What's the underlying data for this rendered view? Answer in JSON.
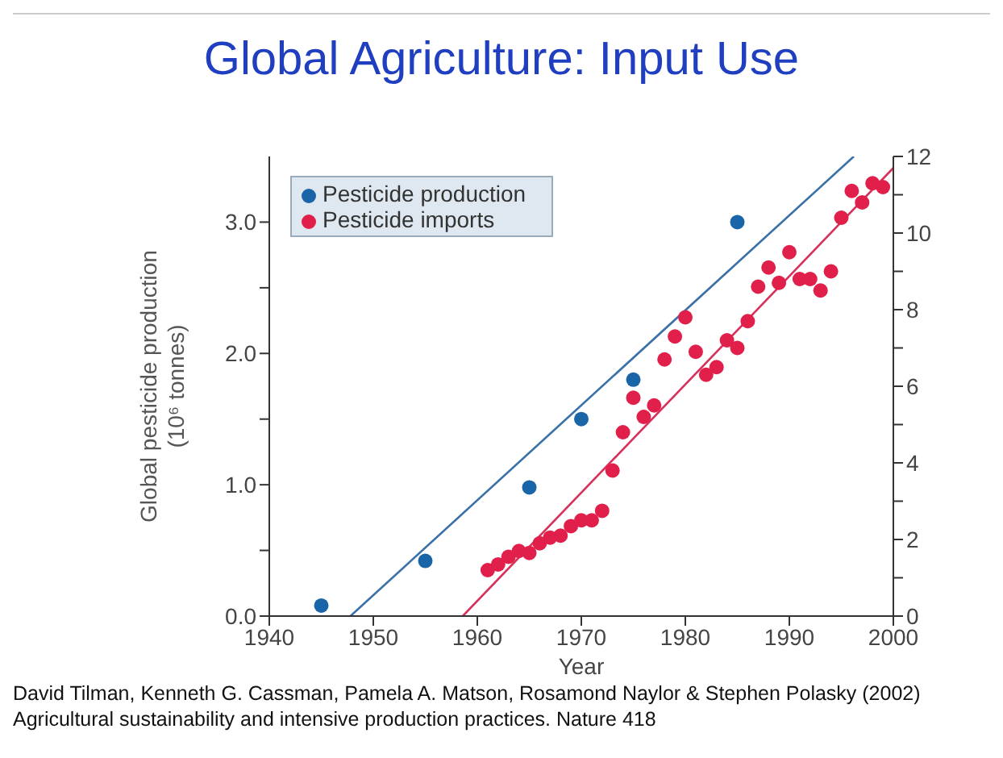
{
  "chart_data": {
    "type": "scatter",
    "title": "Global Agriculture: Input Use",
    "xlabel": "Year",
    "ylabel": "Global pesticide production\n(10⁶ tonnes)",
    "xlim": [
      1940,
      2000
    ],
    "xticks": [
      1940,
      1950,
      1960,
      1970,
      1980,
      1990,
      2000
    ],
    "ylim": [
      0,
      3.5
    ],
    "yticks": [
      {
        "value": 0,
        "label": "0.0"
      },
      {
        "value": 0.5,
        "label": null
      },
      {
        "value": 1,
        "label": "1.0"
      },
      {
        "value": 1.5,
        "label": null
      },
      {
        "value": 2,
        "label": "2.0"
      },
      {
        "value": 2.5,
        "label": null
      },
      {
        "value": 3,
        "label": "3.0"
      }
    ],
    "y2lim": [
      0,
      12
    ],
    "y2ticks": [
      0,
      {
        "value": 1,
        "label": null
      },
      2,
      {
        "value": 3,
        "label": null
      },
      4,
      {
        "value": 5,
        "label": null
      },
      6,
      {
        "value": 7,
        "label": null
      },
      8,
      {
        "value": 9,
        "label": null
      },
      10,
      {
        "value": 11,
        "label": null
      },
      12
    ],
    "legend": "top left",
    "marker": "circle",
    "series": [
      {
        "name": "Pesticide production",
        "color": "#1a64a8",
        "x": [
          1945,
          1955,
          1965,
          1970,
          1975,
          1985
        ],
        "values": [
          0.08,
          0.42,
          0.98,
          1.5,
          1.8,
          3.0
        ]
      },
      {
        "name": "Pesticide imports",
        "color": "#e0204a",
        "axis": "y2",
        "x": [
          1961,
          1962,
          1963,
          1964,
          1965,
          1966,
          1967,
          1968,
          1969,
          1970,
          1971,
          1972,
          1973,
          1974,
          1975,
          1976,
          1977,
          1978,
          1979,
          1980,
          1981,
          1982,
          1983,
          1984,
          1985,
          1986,
          1987,
          1988,
          1989,
          1990,
          1991,
          1992,
          1993,
          1994,
          1995,
          1996,
          1997,
          1998,
          1999
        ],
        "values": [
          1.2,
          1.35,
          1.55,
          1.7,
          1.65,
          1.9,
          2.05,
          2.1,
          2.35,
          2.5,
          2.5,
          2.75,
          3.8,
          4.8,
          5.7,
          5.2,
          5.5,
          6.7,
          7.3,
          7.8,
          6.9,
          6.3,
          6.5,
          7.2,
          7.0,
          7.7,
          8.6,
          9.1,
          8.7,
          9.5,
          8.8,
          8.8,
          8.5,
          9.0,
          10.4,
          11.1,
          10.8,
          11.3,
          11.2
        ]
      },
      {
        "type": "line",
        "color": "#3a70a8",
        "marker": "none",
        "x": [
          1947.8,
          1996.2
        ],
        "values": [
          0,
          3.5
        ]
      },
      {
        "type": "line",
        "color": "#d8305a",
        "marker": "none",
        "axis": "y2",
        "x": [
          1958.6,
          2000
        ],
        "values": [
          0,
          11.7
        ]
      }
    ],
    "annotations": [
      "David Tilman, Kenneth G. Cassman, Pamela A. Matson, Rosamond Naylor & Stephen Polasky (2002) Agricultural sustainability and intensive production practices. Nature 418"
    ]
  }
}
